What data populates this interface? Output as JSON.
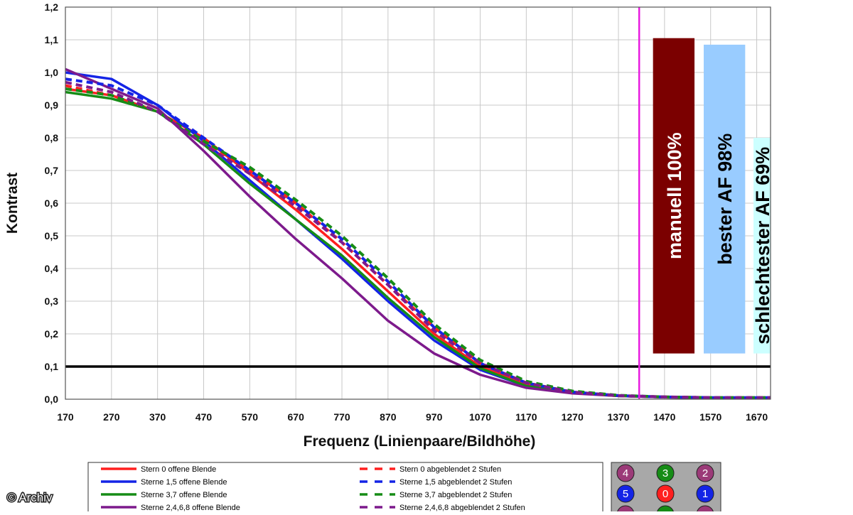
{
  "chart_data": {
    "type": "line",
    "xlabel": "Frequenz (Linienpaare/Bildhöhe)",
    "ylabel": "Kontrast",
    "xlim": [
      170,
      1700
    ],
    "ylim": [
      0,
      1.2
    ],
    "xticks": [
      "170",
      "270",
      "370",
      "470",
      "570",
      "670",
      "770",
      "870",
      "970",
      "1070",
      "1170",
      "1270",
      "1370",
      "1470",
      "1570",
      "1670"
    ],
    "yticks": [
      "0,0",
      "0,1",
      "0,2",
      "0,3",
      "0,4",
      "0,5",
      "0,6",
      "0,7",
      "0,8",
      "0,9",
      "1,0",
      "1,1",
      "1,2"
    ],
    "grid": true,
    "threshold": {
      "y": 0.1,
      "color": "#000000"
    },
    "marker_line": {
      "x": 1415,
      "color": "#e81ce0"
    },
    "series": [
      {
        "name": "Stern 0 offene Blende",
        "color": "#ff1f1f",
        "dashed": false,
        "x": [
          170,
          270,
          370,
          470,
          570,
          670,
          770,
          870,
          970,
          1070,
          1170,
          1270,
          1370,
          1470,
          1570,
          1670,
          1700
        ],
        "y": [
          0.95,
          0.93,
          0.88,
          0.8,
          0.69,
          0.58,
          0.46,
          0.33,
          0.2,
          0.1,
          0.045,
          0.02,
          0.01,
          0.006,
          0.005,
          0.005,
          0.005
        ]
      },
      {
        "name": "Sterne 1,5 offene Blende",
        "color": "#1424e6",
        "dashed": false,
        "x": [
          170,
          270,
          370,
          470,
          570,
          670,
          770,
          870,
          970,
          1070,
          1170,
          1270,
          1370,
          1470,
          1570,
          1670,
          1700
        ],
        "y": [
          1.0,
          0.98,
          0.9,
          0.79,
          0.67,
          0.55,
          0.43,
          0.3,
          0.18,
          0.09,
          0.04,
          0.02,
          0.01,
          0.006,
          0.005,
          0.005,
          0.005
        ]
      },
      {
        "name": "Sterne 3,7 offene Blende",
        "color": "#168c16",
        "dashed": false,
        "x": [
          170,
          270,
          370,
          470,
          570,
          670,
          770,
          870,
          970,
          1070,
          1170,
          1270,
          1370,
          1470,
          1570,
          1670,
          1700
        ],
        "y": [
          0.94,
          0.92,
          0.88,
          0.78,
          0.66,
          0.55,
          0.44,
          0.31,
          0.19,
          0.095,
          0.04,
          0.02,
          0.01,
          0.006,
          0.005,
          0.005,
          0.005
        ]
      },
      {
        "name": "Sterne 2,4,6,8 offene Blende",
        "color": "#7d1a8c",
        "dashed": false,
        "x": [
          170,
          270,
          370,
          470,
          570,
          670,
          770,
          870,
          970,
          1070,
          1170,
          1270,
          1370,
          1470,
          1570,
          1670,
          1700
        ],
        "y": [
          1.01,
          0.95,
          0.89,
          0.76,
          0.62,
          0.49,
          0.37,
          0.24,
          0.14,
          0.075,
          0.035,
          0.018,
          0.01,
          0.006,
          0.005,
          0.005,
          0.005
        ]
      },
      {
        "name": "Stern 0 abgeblendet 2 Stufen",
        "color": "#ff1f1f",
        "dashed": true,
        "x": [
          170,
          270,
          370,
          470,
          570,
          670,
          770,
          870,
          970,
          1070,
          1170,
          1270,
          1370,
          1470,
          1570,
          1670,
          1700
        ],
        "y": [
          0.96,
          0.93,
          0.88,
          0.79,
          0.7,
          0.6,
          0.48,
          0.35,
          0.22,
          0.11,
          0.05,
          0.022,
          0.011,
          0.007,
          0.005,
          0.005,
          0.005
        ]
      },
      {
        "name": "Sterne 1,5 abgeblendet 2 Stufen",
        "color": "#1424e6",
        "dashed": true,
        "x": [
          170,
          270,
          370,
          470,
          570,
          670,
          770,
          870,
          970,
          1070,
          1170,
          1270,
          1370,
          1470,
          1570,
          1670,
          1700
        ],
        "y": [
          0.98,
          0.96,
          0.9,
          0.8,
          0.7,
          0.6,
          0.49,
          0.36,
          0.22,
          0.11,
          0.05,
          0.022,
          0.011,
          0.007,
          0.005,
          0.005,
          0.005
        ]
      },
      {
        "name": "Sterne 3,7 abgeblendet 2 Stufen",
        "color": "#168c16",
        "dashed": true,
        "x": [
          170,
          270,
          370,
          470,
          570,
          670,
          770,
          870,
          970,
          1070,
          1170,
          1270,
          1370,
          1470,
          1570,
          1670,
          1700
        ],
        "y": [
          0.95,
          0.93,
          0.88,
          0.79,
          0.71,
          0.61,
          0.5,
          0.37,
          0.23,
          0.12,
          0.055,
          0.025,
          0.012,
          0.007,
          0.005,
          0.005,
          0.005
        ]
      },
      {
        "name": "Sterne 2,4,6,8 abgeblendet 2 Stufen",
        "color": "#7d1a8c",
        "dashed": true,
        "x": [
          170,
          270,
          370,
          470,
          570,
          670,
          770,
          870,
          970,
          1070,
          1170,
          1270,
          1370,
          1470,
          1570,
          1670,
          1700
        ],
        "y": [
          0.97,
          0.94,
          0.88,
          0.78,
          0.69,
          0.59,
          0.48,
          0.35,
          0.21,
          0.11,
          0.05,
          0.022,
          0.011,
          0.007,
          0.005,
          0.005,
          0.005
        ]
      }
    ],
    "bars": [
      {
        "label": "manuell 100%",
        "value": 1.105,
        "color": "#7b0000",
        "text_color": "#ffffff",
        "x_from": 1445,
        "x_to": 1535
      },
      {
        "label": "bester AF 98%",
        "value": 1.085,
        "color": "#99ccff",
        "text_color": "#000000",
        "x_from": 1555,
        "x_to": 1645
      },
      {
        "label": "schlechtester AF 69%",
        "value": 0.8,
        "color": "#ccffff",
        "text_color": "#000000",
        "x_from": 1663,
        "x_to": 1700
      }
    ],
    "legend": {
      "placement": "bottom",
      "entries": [
        {
          "label": "Stern 0 offene Blende",
          "color": "#ff1f1f",
          "dashed": false
        },
        {
          "label": "Sterne 1,5 offene Blende",
          "color": "#1424e6",
          "dashed": false
        },
        {
          "label": "Sterne 3,7 offene Blende",
          "color": "#168c16",
          "dashed": false
        },
        {
          "label": "Sterne 2,4,6,8 offene Blende",
          "color": "#7d1a8c",
          "dashed": false
        },
        {
          "label": "Stern 0 abgeblendet 2 Stufen",
          "color": "#ff1f1f",
          "dashed": true
        },
        {
          "label": "Sterne 1,5 abgeblendet 2 Stufen",
          "color": "#1424e6",
          "dashed": true
        },
        {
          "label": "Sterne 3,7 abgeblendet 2 Stufen",
          "color": "#168c16",
          "dashed": true
        },
        {
          "label": "Sterne 2,4,6,8 abgeblendet 2 Stufen",
          "color": "#7d1a8c",
          "dashed": true
        }
      ]
    },
    "star_key": [
      {
        "label": "4",
        "color": "#9b3a78"
      },
      {
        "label": "3",
        "color": "#168c16"
      },
      {
        "label": "2",
        "color": "#9b3a78"
      },
      {
        "label": "5",
        "color": "#1424e6"
      },
      {
        "label": "0",
        "color": "#ff1f1f"
      },
      {
        "label": "1",
        "color": "#1424e6"
      },
      {
        "label": "",
        "color": "#9b3a78"
      },
      {
        "label": "",
        "color": "#168c16"
      },
      {
        "label": "",
        "color": "#9b3a78"
      }
    ],
    "copyright": "© Archiv"
  }
}
